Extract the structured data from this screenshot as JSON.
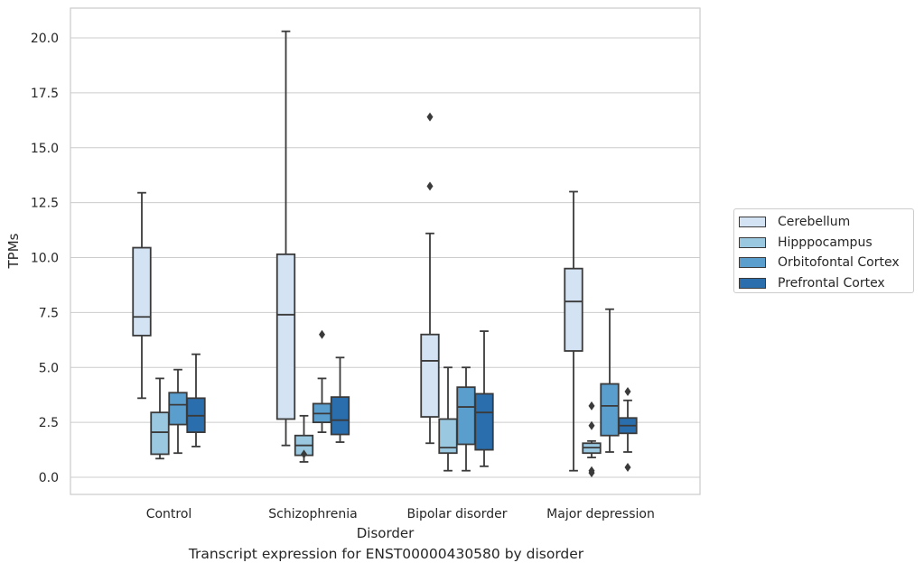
{
  "chart_data": {
    "type": "box",
    "title": "Transcript expression for ENST00000430580 by disorder",
    "xlabel": "Disorder",
    "ylabel": "TPMs",
    "ylim": [
      -0.75,
      21.3
    ],
    "yticks": [
      "0.0",
      "2.5",
      "5.0",
      "7.5",
      "10.0",
      "12.5",
      "15.0",
      "17.5",
      "20.0"
    ],
    "ytick_values": [
      0,
      2.5,
      5,
      7.5,
      10,
      12.5,
      15,
      17.5,
      20
    ],
    "categories": [
      "Control",
      "Schizophrenia",
      "Bipolar disorder",
      "Major depression"
    ],
    "grid": "horizontal",
    "legend_position": "right",
    "series": [
      {
        "name": "Cerebellum",
        "color": "#d3e3f3",
        "boxes": [
          {
            "whislo": 3.6,
            "q1": 6.45,
            "med": 7.3,
            "q3": 10.45,
            "whishi": 12.95,
            "fliers": []
          },
          {
            "whislo": 1.45,
            "q1": 2.65,
            "med": 7.4,
            "q3": 10.15,
            "whishi": 20.3,
            "fliers": []
          },
          {
            "whislo": 1.55,
            "q1": 2.75,
            "med": 5.3,
            "q3": 6.5,
            "whishi": 11.1,
            "fliers": [
              13.25,
              16.4
            ]
          },
          {
            "whislo": 0.3,
            "q1": 5.75,
            "med": 8.0,
            "q3": 9.5,
            "whishi": 13.0,
            "fliers": []
          }
        ]
      },
      {
        "name": "Hipppocampus",
        "color": "#9ac8e0",
        "boxes": [
          {
            "whislo": 0.85,
            "q1": 1.05,
            "med": 2.05,
            "q3": 2.95,
            "whishi": 4.5,
            "fliers": []
          },
          {
            "whislo": 0.7,
            "q1": 1.0,
            "med": 1.45,
            "q3": 1.9,
            "whishi": 2.8,
            "fliers": [
              1.05
            ]
          },
          {
            "whislo": 0.3,
            "q1": 1.1,
            "med": 1.35,
            "q3": 2.65,
            "whishi": 5.0,
            "fliers": []
          },
          {
            "whislo": 0.9,
            "q1": 1.1,
            "med": 1.35,
            "q3": 1.55,
            "whishi": 1.65,
            "fliers": [
              0.2,
              0.3,
              2.35,
              3.25
            ]
          }
        ]
      },
      {
        "name": "Orbitofontal Cortex",
        "color": "#5a9ecd",
        "boxes": [
          {
            "whislo": 1.1,
            "q1": 2.4,
            "med": 3.3,
            "q3": 3.85,
            "whishi": 4.9,
            "fliers": []
          },
          {
            "whislo": 2.05,
            "q1": 2.5,
            "med": 2.9,
            "q3": 3.35,
            "whishi": 4.5,
            "fliers": [
              6.5
            ]
          },
          {
            "whislo": 0.3,
            "q1": 1.5,
            "med": 3.2,
            "q3": 4.1,
            "whishi": 5.0,
            "fliers": []
          },
          {
            "whislo": 1.15,
            "q1": 1.9,
            "med": 3.25,
            "q3": 4.25,
            "whishi": 7.65,
            "fliers": []
          }
        ]
      },
      {
        "name": "Prefrontal Cortex",
        "color": "#2a6ead",
        "boxes": [
          {
            "whislo": 1.4,
            "q1": 2.05,
            "med": 2.8,
            "q3": 3.6,
            "whishi": 5.6,
            "fliers": []
          },
          {
            "whislo": 1.6,
            "q1": 1.95,
            "med": 2.6,
            "q3": 3.65,
            "whishi": 5.45,
            "fliers": []
          },
          {
            "whislo": 0.5,
            "q1": 1.25,
            "med": 2.95,
            "q3": 3.8,
            "whishi": 6.65,
            "fliers": []
          },
          {
            "whislo": 1.15,
            "q1": 2.0,
            "med": 2.35,
            "q3": 2.7,
            "whishi": 3.5,
            "fliers": [
              0.45,
              3.9
            ]
          }
        ]
      }
    ]
  }
}
